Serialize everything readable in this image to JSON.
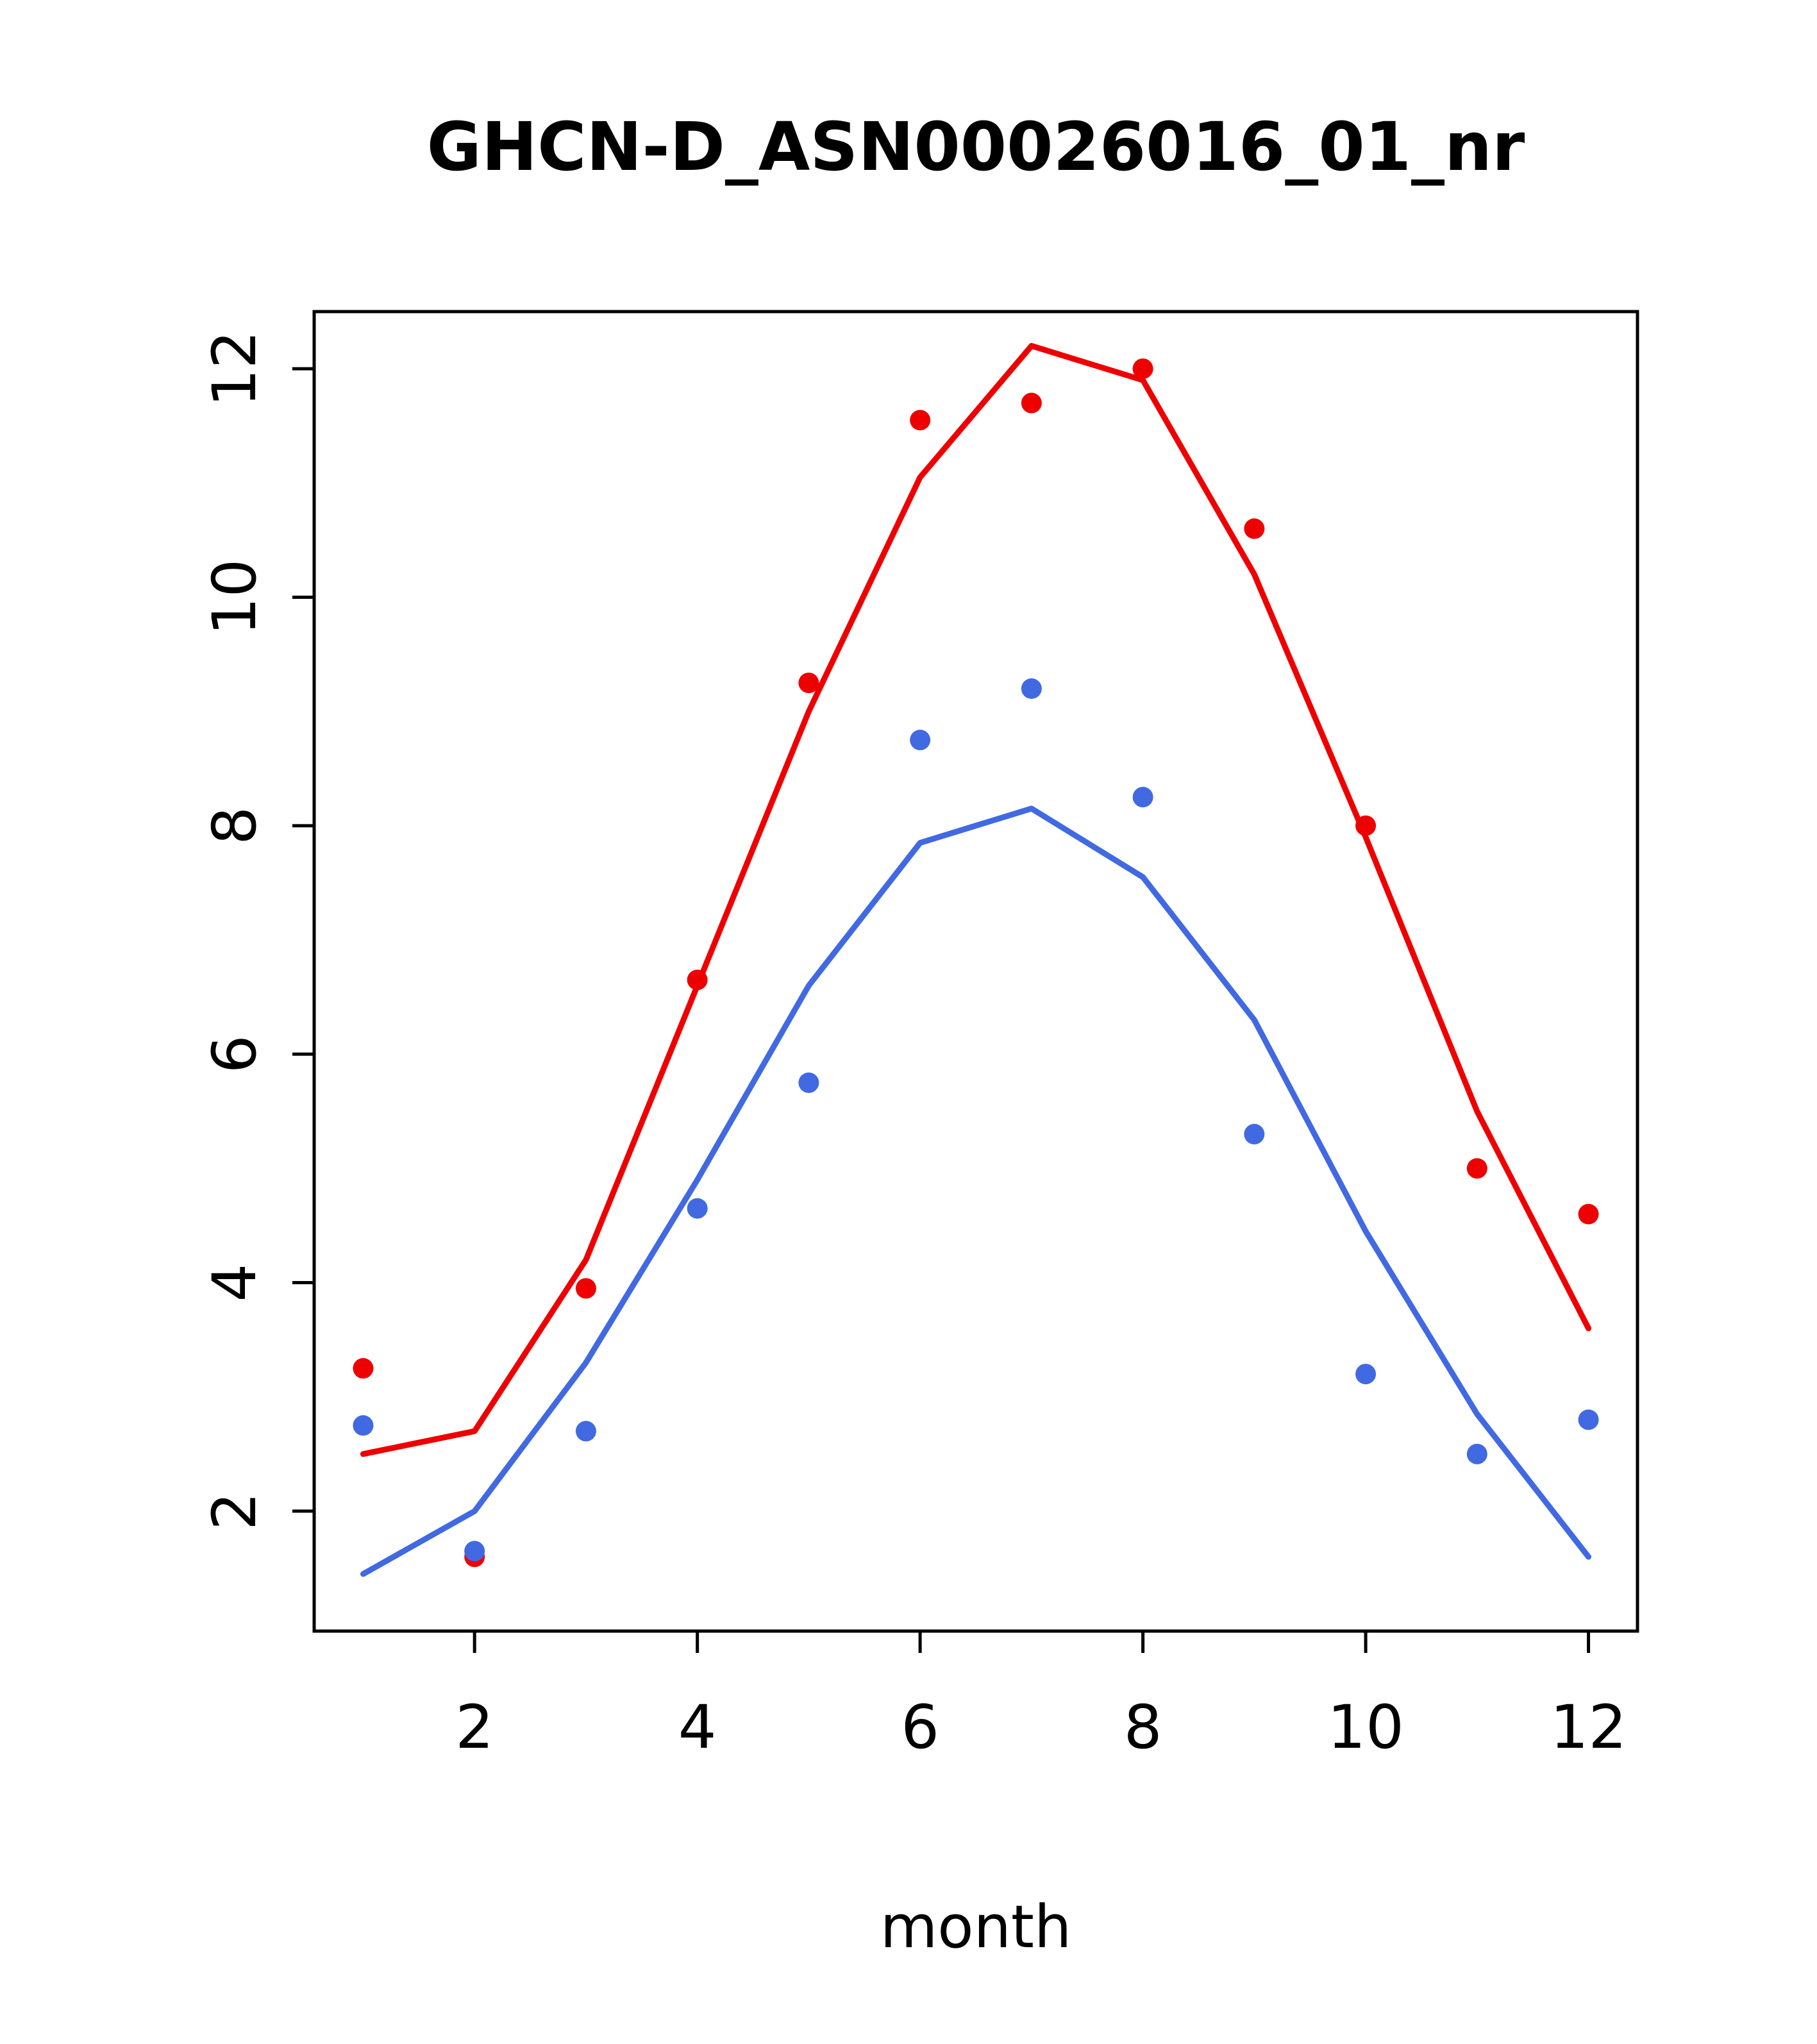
{
  "page": {
    "title": "GHCN-D_ASN00026016_01_nr"
  },
  "chart_data": {
    "type": "line",
    "title": "GHCN-D_ASN00026016_01_nr",
    "xlabel": "month",
    "ylabel": "",
    "grid": false,
    "legend": "none",
    "x": [
      1,
      2,
      3,
      4,
      5,
      6,
      7,
      8,
      9,
      10,
      11,
      12
    ],
    "x_ticks": [
      2,
      4,
      6,
      8,
      10,
      12
    ],
    "y_ticks": [
      2,
      4,
      6,
      8,
      10,
      12
    ],
    "xlim": [
      0.56,
      12.44
    ],
    "ylim": [
      0.95,
      12.5
    ],
    "colors": {
      "red_series": "#ee0000",
      "blue_series": "#4169e1",
      "axis": "#000000"
    },
    "series": [
      {
        "name": "red-line",
        "style": "line",
        "color": "#ee0000",
        "values": [
          2.5,
          2.7,
          4.2,
          6.6,
          9.0,
          11.05,
          12.2,
          11.9,
          10.2,
          7.9,
          5.5,
          3.6
        ]
      },
      {
        "name": "blue-line",
        "style": "line",
        "color": "#4169e1",
        "values": [
          1.45,
          2.0,
          3.3,
          4.9,
          6.6,
          7.85,
          8.15,
          7.55,
          6.3,
          4.45,
          2.85,
          1.6
        ]
      },
      {
        "name": "red-points",
        "style": "points",
        "color": "#ee0000",
        "values": [
          3.25,
          1.6,
          3.95,
          6.65,
          9.25,
          11.55,
          11.7,
          12.0,
          10.6,
          8.0,
          5.0,
          4.6
        ]
      },
      {
        "name": "blue-points",
        "style": "points",
        "color": "#4169e1",
        "values": [
          2.75,
          1.65,
          2.7,
          4.65,
          5.75,
          8.75,
          9.2,
          8.25,
          5.3,
          3.2,
          2.5,
          2.8
        ]
      }
    ]
  }
}
